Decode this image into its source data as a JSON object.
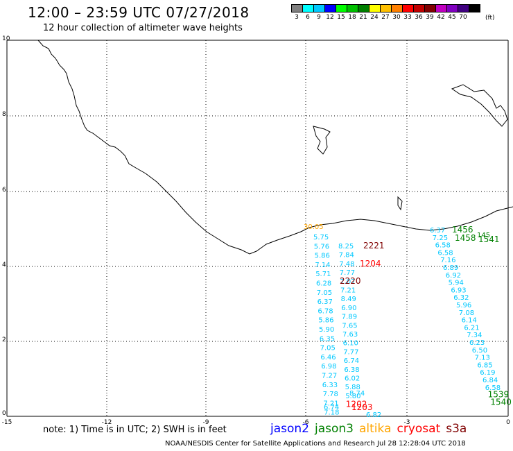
{
  "header": {
    "title": "12:00 – 23:59 UTC 07/27/2018",
    "subtitle": "12 hour collection of altimeter wave heights"
  },
  "legend": {
    "colors": [
      "#808080",
      "#00ffff",
      "#00c8ff",
      "#0000ff",
      "#00ff00",
      "#00c000",
      "#008000",
      "#ffff00",
      "#ffc000",
      "#ff8000",
      "#ff0000",
      "#c00000",
      "#800000",
      "#c000c0",
      "#8000c0",
      "#400080",
      "#000000"
    ],
    "labels": [
      "3",
      "6",
      "9",
      "12",
      "15",
      "18",
      "21",
      "24",
      "27",
      "30",
      "33",
      "36",
      "39",
      "42",
      "45",
      "70"
    ],
    "unit": "(ft)"
  },
  "axes": {
    "x_ticks": [
      "-15",
      "-12",
      "-9",
      "-6",
      "-3",
      "0"
    ],
    "y_ticks": [
      "0",
      "2",
      "4",
      "6",
      "8",
      "10"
    ]
  },
  "observations": [
    {
      "t": "30.05",
      "c": "#ffa500"
    },
    {
      "t": "5.75",
      "c": "#00c8ff"
    },
    {
      "t": "5.76",
      "c": "#00c8ff"
    },
    {
      "t": "5.86",
      "c": "#00c8ff"
    },
    {
      "t": "7.14",
      "c": "#00c8ff"
    },
    {
      "t": "5.71",
      "c": "#00c8ff"
    },
    {
      "t": "6.28",
      "c": "#00c8ff"
    },
    {
      "t": "7.05",
      "c": "#00c8ff"
    },
    {
      "t": "6.37",
      "c": "#00c8ff"
    },
    {
      "t": "6.78",
      "c": "#00c8ff"
    },
    {
      "t": "5.86",
      "c": "#00c8ff"
    },
    {
      "t": "5.90",
      "c": "#00c8ff"
    },
    {
      "t": "6.35",
      "c": "#00c8ff"
    },
    {
      "t": "7.05",
      "c": "#00c8ff"
    },
    {
      "t": "6.46",
      "c": "#00c8ff"
    },
    {
      "t": "6.98",
      "c": "#00c8ff"
    },
    {
      "t": "7.27",
      "c": "#00c8ff"
    },
    {
      "t": "6.33",
      "c": "#00c8ff"
    },
    {
      "t": "7.78",
      "c": "#00c8ff"
    },
    {
      "t": "7.21",
      "c": "#00c8ff"
    },
    {
      "t": "7.18",
      "c": "#00c8ff"
    },
    {
      "t": "6.74",
      "c": "#00c8ff"
    },
    {
      "t": "8.25",
      "c": "#00c8ff"
    },
    {
      "t": "7.84",
      "c": "#00c8ff"
    },
    {
      "t": "7.48",
      "c": "#00c8ff"
    },
    {
      "t": "7.77",
      "c": "#00c8ff"
    },
    {
      "t": "7.07",
      "c": "#00c8ff"
    },
    {
      "t": "7.21",
      "c": "#00c8ff"
    },
    {
      "t": "8.49",
      "c": "#00c8ff"
    },
    {
      "t": "6.90",
      "c": "#00c8ff"
    },
    {
      "t": "7.89",
      "c": "#00c8ff"
    },
    {
      "t": "7.65",
      "c": "#00c8ff"
    },
    {
      "t": "7.63",
      "c": "#00c8ff"
    },
    {
      "t": "6.10",
      "c": "#00c8ff"
    },
    {
      "t": "7.77",
      "c": "#00c8ff"
    },
    {
      "t": "6.74",
      "c": "#00c8ff"
    },
    {
      "t": "6.38",
      "c": "#00c8ff"
    },
    {
      "t": "6.02",
      "c": "#00c8ff"
    },
    {
      "t": "5.88",
      "c": "#00c8ff"
    },
    {
      "t": "5.80",
      "c": "#00c8ff"
    },
    {
      "t": "1202",
      "c": "#ff0000"
    },
    {
      "t": "1203",
      "c": "#ff0000"
    },
    {
      "t": "2221",
      "c": "#800000"
    },
    {
      "t": "1204",
      "c": "#ff0000"
    },
    {
      "t": "2220",
      "c": "#800000"
    },
    {
      "t": "8.74",
      "c": "#00c8ff"
    },
    {
      "t": "6.82",
      "c": "#00c8ff"
    },
    {
      "t": "6.37",
      "c": "#00c8ff"
    },
    {
      "t": "7.25",
      "c": "#00c8ff"
    },
    {
      "t": "6.58",
      "c": "#00c8ff"
    },
    {
      "t": "6.58",
      "c": "#00c8ff"
    },
    {
      "t": "7.16",
      "c": "#00c8ff"
    },
    {
      "t": "6.89",
      "c": "#00c8ff"
    },
    {
      "t": "6.92",
      "c": "#00c8ff"
    },
    {
      "t": "5.94",
      "c": "#00c8ff"
    },
    {
      "t": "6.93",
      "c": "#00c8ff"
    },
    {
      "t": "6.32",
      "c": "#00c8ff"
    },
    {
      "t": "5.96",
      "c": "#00c8ff"
    },
    {
      "t": "7.08",
      "c": "#00c8ff"
    },
    {
      "t": "6.14",
      "c": "#00c8ff"
    },
    {
      "t": "6.21",
      "c": "#00c8ff"
    },
    {
      "t": "7.34",
      "c": "#00c8ff"
    },
    {
      "t": "6.23",
      "c": "#00c8ff"
    },
    {
      "t": "6.50",
      "c": "#00c8ff"
    },
    {
      "t": "7.13",
      "c": "#00c8ff"
    },
    {
      "t": "6.85",
      "c": "#00c8ff"
    },
    {
      "t": "6.19",
      "c": "#00c8ff"
    },
    {
      "t": "6.84",
      "c": "#00c8ff"
    },
    {
      "t": "6.58",
      "c": "#00c8ff"
    },
    {
      "t": "1539",
      "c": "#008000"
    },
    {
      "t": "1540",
      "c": "#008000"
    },
    {
      "t": "1456",
      "c": "#008000"
    },
    {
      "t": "1458",
      "c": "#008000"
    },
    {
      "t": "145",
      "c": "#008000"
    },
    {
      "t": "1541",
      "c": "#008000"
    }
  ],
  "note": "note:  1) Time is in UTC;  2) SWH is in feet",
  "satellites": [
    {
      "name": "jason2",
      "color": "#0000ff"
    },
    {
      "name": "jason3",
      "color": "#008000"
    },
    {
      "name": "altika",
      "color": "#ffa500"
    },
    {
      "name": "cryosat",
      "color": "#ff0000"
    },
    {
      "name": "s3a",
      "color": "#800000"
    }
  ],
  "footer": "NOAA/NESDIS Center for Satellite Applications and Research    Jul 28 12:28:04 UTC 2018"
}
